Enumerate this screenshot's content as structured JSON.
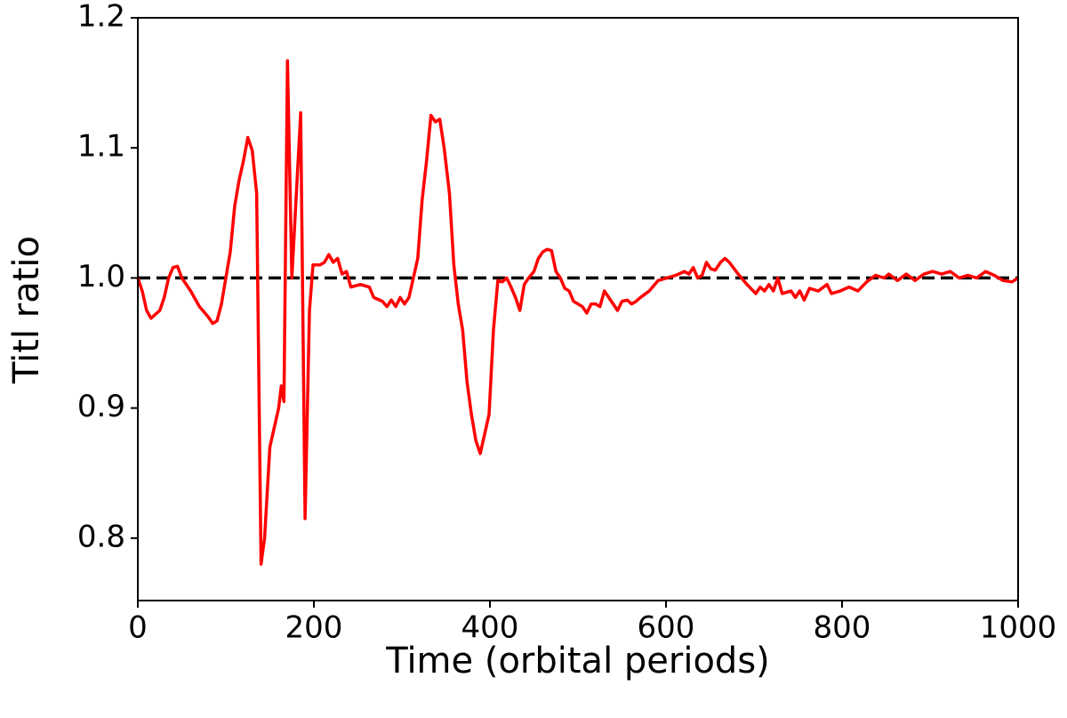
{
  "chart_data": {
    "type": "line",
    "xlabel": "Time (orbital periods)",
    "ylabel": "Titl ratio",
    "x": [
      0,
      5,
      10,
      15,
      25,
      30,
      35,
      40,
      45,
      50,
      60,
      70,
      80,
      85,
      90,
      95,
      100,
      105,
      110,
      115,
      120,
      125,
      130,
      135,
      140,
      144,
      150,
      160,
      163,
      166,
      170,
      175,
      185,
      190,
      195,
      199,
      207,
      212,
      217,
      222,
      227,
      232,
      237,
      242,
      253,
      263,
      268,
      278,
      283,
      288,
      293,
      298,
      303,
      308,
      313,
      318,
      323,
      328,
      333,
      338,
      343,
      348,
      354,
      359,
      364,
      369,
      374,
      379,
      384,
      389,
      394,
      399,
      404,
      409,
      414,
      419,
      424,
      429,
      434,
      439,
      444,
      450,
      455,
      460,
      465,
      470,
      475,
      480,
      485,
      490,
      495,
      500,
      505,
      510,
      515,
      520,
      525,
      530,
      535,
      540,
      545,
      550,
      556,
      561,
      566,
      571,
      581,
      591,
      601,
      611,
      621,
      626,
      631,
      636,
      641,
      646,
      651,
      656,
      662,
      667,
      672,
      682,
      692,
      702,
      707,
      712,
      717,
      722,
      727,
      732,
      742,
      747,
      752,
      757,
      763,
      773,
      783,
      788,
      798,
      808,
      818,
      828,
      838,
      848,
      853,
      863,
      873,
      883,
      893,
      903,
      913,
      923,
      933,
      943,
      953,
      963,
      973,
      983,
      993,
      1000
    ],
    "series": [
      {
        "color": "#ff0000",
        "values": [
          1.0,
          0.99,
          0.975,
          0.969,
          0.975,
          0.985,
          1.0,
          1.008,
          1.009,
          1.0,
          0.99,
          0.978,
          0.97,
          0.965,
          0.967,
          0.98,
          1.0,
          1.02,
          1.055,
          1.075,
          1.09,
          1.108,
          1.098,
          1.065,
          0.78,
          0.8,
          0.87,
          0.9,
          0.917,
          0.905,
          1.167,
          1.0,
          1.127,
          0.815,
          0.975,
          1.01,
          1.01,
          1.012,
          1.018,
          1.012,
          1.015,
          1.003,
          1.005,
          0.993,
          0.995,
          0.993,
          0.985,
          0.982,
          0.978,
          0.983,
          0.978,
          0.985,
          0.98,
          0.985,
          1.0,
          1.015,
          1.06,
          1.09,
          1.125,
          1.12,
          1.122,
          1.1,
          1.065,
          1.01,
          0.98,
          0.96,
          0.92,
          0.895,
          0.875,
          0.865,
          0.88,
          0.895,
          0.96,
          0.998,
          0.997,
          1.0,
          0.993,
          0.985,
          0.975,
          0.995,
          1.0,
          1.005,
          1.015,
          1.02,
          1.022,
          1.021,
          1.005,
          1.0,
          0.992,
          0.99,
          0.982,
          0.98,
          0.978,
          0.973,
          0.98,
          0.98,
          0.978,
          0.99,
          0.985,
          0.98,
          0.975,
          0.982,
          0.983,
          0.98,
          0.982,
          0.985,
          0.99,
          0.998,
          1.0,
          1.002,
          1.005,
          1.003,
          1.008,
          1.0,
          1.002,
          1.012,
          1.007,
          1.006,
          1.012,
          1.015,
          1.012,
          1.003,
          0.995,
          0.988,
          0.993,
          0.99,
          0.995,
          0.99,
          1.0,
          0.988,
          0.99,
          0.985,
          0.99,
          0.983,
          0.992,
          0.99,
          0.995,
          0.988,
          0.99,
          0.993,
          0.99,
          0.997,
          1.002,
          1.0,
          1.003,
          0.998,
          1.003,
          0.998,
          1.003,
          1.005,
          1.003,
          1.005,
          1.0,
          1.002,
          1.0,
          1.005,
          1.002,
          0.998,
          0.997,
          1.0
        ]
      }
    ],
    "reference_line": {
      "y": 1,
      "color": "#000000",
      "style": "dashed"
    },
    "xlim": [
      0,
      1000
    ],
    "xticks": [
      0,
      200,
      400,
      600,
      800,
      1000
    ],
    "ylim": [
      0.752,
      1.2
    ],
    "yticks": [
      0.8,
      0.9,
      {
        "value": 1,
        "label": "1.0"
      },
      1.1,
      1.2
    ]
  }
}
